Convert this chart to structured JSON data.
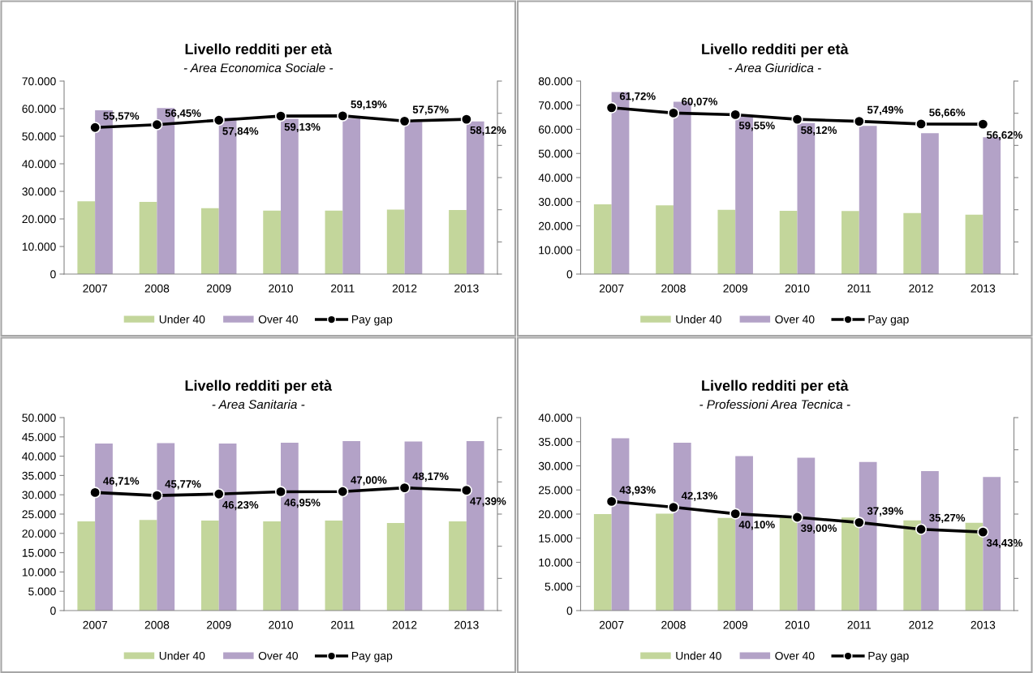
{
  "chart_data": [
    {
      "type": "bar",
      "title": "Livello redditi per età",
      "subtitle": "- Area Economica Sociale -",
      "categories": [
        "2007",
        "2008",
        "2009",
        "2010",
        "2011",
        "2012",
        "2013"
      ],
      "series": [
        {
          "name": "Under 40",
          "color": "#c3d69b",
          "values": [
            26400,
            26200,
            23900,
            23000,
            23000,
            23400,
            23200
          ]
        },
        {
          "name": "Over 40",
          "color": "#b3a2c7",
          "values": [
            59400,
            60200,
            56700,
            56300,
            56400,
            55200,
            55400
          ]
        },
        {
          "name": "Pay gap",
          "type": "line",
          "axis": "y2",
          "color": "#000000",
          "marker": "circle",
          "values": [
            55.57,
            56.45,
            57.84,
            59.13,
            59.19,
            57.57,
            58.12
          ],
          "value_labels": [
            "55,57%",
            "56,45%",
            "57,84%",
            "59,13%",
            "59,19%",
            "57,57%",
            "58,12%"
          ]
        }
      ],
      "ylim": [
        0,
        70000
      ],
      "yticks": [
        0,
        {
          "value": 10000,
          "label": "10.000"
        },
        {
          "value": 20000,
          "label": "20.000"
        },
        {
          "value": 30000,
          "label": "30.000"
        },
        {
          "value": 40000,
          "label": "40.000"
        },
        {
          "value": 50000,
          "label": "50.000"
        },
        {
          "value": 60000,
          "label": "60.000"
        },
        {
          "value": 70000,
          "label": "70.000"
        }
      ],
      "y2lim": [
        10,
        70
      ],
      "y2ticks": [
        {
          "value": 10,
          "label": null
        },
        {
          "value": 20,
          "label": null
        },
        {
          "value": 30,
          "label": null
        },
        {
          "value": 40,
          "label": null
        },
        {
          "value": 50,
          "label": null
        },
        {
          "value": 60,
          "label": null
        },
        {
          "value": 70,
          "label": null
        }
      ],
      "legend": "bottom"
    },
    {
      "type": "bar",
      "title": "Livello redditi per età",
      "subtitle": "- Area Giuridica -",
      "categories": [
        "2007",
        "2008",
        "2009",
        "2010",
        "2011",
        "2012",
        "2013"
      ],
      "series": [
        {
          "name": "Under 40",
          "color": "#c3d69b",
          "values": [
            28900,
            28500,
            26600,
            26200,
            26100,
            25300,
            24600
          ]
        },
        {
          "name": "Over 40",
          "color": "#b3a2c7",
          "values": [
            75500,
            71400,
            65800,
            62600,
            61400,
            58400,
            56700
          ]
        },
        {
          "name": "Pay gap",
          "type": "line",
          "axis": "y2",
          "color": "#000000",
          "marker": "circle",
          "values": [
            61.72,
            60.07,
            59.55,
            58.12,
            57.49,
            56.66,
            56.62
          ],
          "value_labels": [
            "61,72%",
            "60,07%",
            "59,55%",
            "58,12%",
            "57,49%",
            "56,66%",
            "56,62%"
          ]
        }
      ],
      "ylim": [
        0,
        80000
      ],
      "yticks": [
        0,
        {
          "value": 10000,
          "label": "10.000"
        },
        {
          "value": 20000,
          "label": "20.000"
        },
        {
          "value": 30000,
          "label": "30.000"
        },
        {
          "value": 40000,
          "label": "40.000"
        },
        {
          "value": 50000,
          "label": "50.000"
        },
        {
          "value": 60000,
          "label": "60.000"
        },
        {
          "value": 70000,
          "label": "70.000"
        },
        {
          "value": 80000,
          "label": "80.000"
        }
      ],
      "y2lim": [
        10,
        70
      ],
      "y2ticks": [
        {
          "value": 10,
          "label": null
        },
        {
          "value": 20,
          "label": null
        },
        {
          "value": 30,
          "label": null
        },
        {
          "value": 40,
          "label": null
        },
        {
          "value": 50,
          "label": null
        },
        {
          "value": 60,
          "label": null
        },
        {
          "value": 70,
          "label": null
        }
      ],
      "legend": "bottom"
    },
    {
      "type": "bar",
      "title": "Livello redditi per età",
      "subtitle": "- Area Sanitaria -",
      "categories": [
        "2007",
        "2008",
        "2009",
        "2010",
        "2011",
        "2012",
        "2013"
      ],
      "series": [
        {
          "name": "Under 40",
          "color": "#c3d69b",
          "values": [
            23100,
            23500,
            23300,
            23100,
            23300,
            22700,
            23100
          ]
        },
        {
          "name": "Over 40",
          "color": "#b3a2c7",
          "values": [
            43300,
            43400,
            43300,
            43500,
            43900,
            43800,
            43900
          ]
        },
        {
          "name": "Pay gap",
          "type": "line",
          "axis": "y2",
          "color": "#000000",
          "marker": "circle",
          "values": [
            46.71,
            45.77,
            46.23,
            46.95,
            47.0,
            48.17,
            47.39
          ],
          "value_labels": [
            "46,71%",
            "45,77%",
            "46,23%",
            "46,95%",
            "47,00%",
            "48,17%",
            "47,39%"
          ]
        }
      ],
      "ylim": [
        0,
        50000
      ],
      "yticks": [
        0,
        {
          "value": 5000,
          "label": "5.000"
        },
        {
          "value": 10000,
          "label": "10.000"
        },
        {
          "value": 15000,
          "label": "15.000"
        },
        {
          "value": 20000,
          "label": "20.000"
        },
        {
          "value": 25000,
          "label": "25.000"
        },
        {
          "value": 30000,
          "label": "30.000"
        },
        {
          "value": 35000,
          "label": "35.000"
        },
        {
          "value": 40000,
          "label": "40.000"
        },
        {
          "value": 45000,
          "label": "45.000"
        },
        {
          "value": 50000,
          "label": "50.000"
        }
      ],
      "y2lim": [
        10,
        70
      ],
      "y2ticks": [
        {
          "value": 10,
          "label": null
        },
        {
          "value": 20,
          "label": null
        },
        {
          "value": 30,
          "label": null
        },
        {
          "value": 40,
          "label": null
        },
        {
          "value": 50,
          "label": null
        },
        {
          "value": 60,
          "label": null
        },
        {
          "value": 70,
          "label": null
        }
      ],
      "legend": "bottom"
    },
    {
      "type": "bar",
      "title": "Livello redditi per età",
      "subtitle": "- Professioni Area Tecnica -",
      "categories": [
        "2007",
        "2008",
        "2009",
        "2010",
        "2011",
        "2012",
        "2013"
      ],
      "series": [
        {
          "name": "Under 40",
          "color": "#c3d69b",
          "values": [
            20000,
            20100,
            19200,
            19300,
            19300,
            18700,
            18200
          ]
        },
        {
          "name": "Over 40",
          "color": "#b3a2c7",
          "values": [
            35700,
            34800,
            32000,
            31700,
            30800,
            28900,
            27700
          ]
        },
        {
          "name": "Pay gap",
          "type": "line",
          "axis": "y2",
          "color": "#000000",
          "marker": "circle",
          "values": [
            43.93,
            42.13,
            40.1,
            39.0,
            37.39,
            35.27,
            34.43
          ],
          "value_labels": [
            "43,93%",
            "42,13%",
            "40,10%",
            "39,00%",
            "37,39%",
            "35,27%",
            "34,43%"
          ]
        }
      ],
      "ylim": [
        0,
        40000
      ],
      "yticks": [
        0,
        {
          "value": 5000,
          "label": "5.000"
        },
        {
          "value": 10000,
          "label": "10.000"
        },
        {
          "value": 15000,
          "label": "15.000"
        },
        {
          "value": 20000,
          "label": "20.000"
        },
        {
          "value": 25000,
          "label": "25.000"
        },
        {
          "value": 30000,
          "label": "30.000"
        },
        {
          "value": 35000,
          "label": "35.000"
        },
        {
          "value": 40000,
          "label": "40.000"
        }
      ],
      "y2lim": [
        10,
        70
      ],
      "y2ticks": [
        {
          "value": 10,
          "label": null
        },
        {
          "value": 20,
          "label": null
        },
        {
          "value": 30,
          "label": null
        },
        {
          "value": 40,
          "label": null
        },
        {
          "value": 50,
          "label": null
        },
        {
          "value": 60,
          "label": null
        },
        {
          "value": 70,
          "label": null
        }
      ],
      "legend": "bottom"
    }
  ]
}
